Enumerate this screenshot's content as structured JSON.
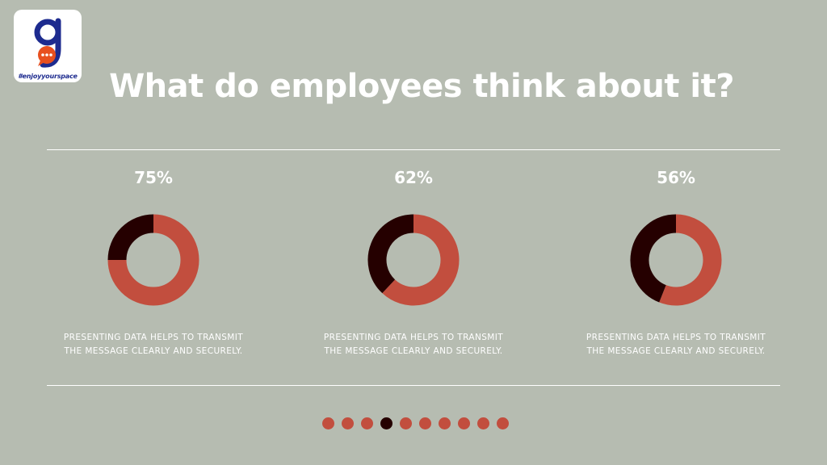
{
  "logo": {
    "tagline": "#enjoyyourspace",
    "colors": {
      "letter": "#1d2b8f",
      "bubble": "#e8501f"
    }
  },
  "title": "What do employees think about it?",
  "chart_data": [
    {
      "type": "pie",
      "donut": true,
      "title": "75%",
      "values": [
        75,
        25
      ],
      "colors": [
        "#c24e3e",
        "#250000"
      ],
      "caption": "PRESENTING DATA HELPS TO TRANSMIT THE MESSAGE CLEARLY AND SECURELY."
    },
    {
      "type": "pie",
      "donut": true,
      "title": "62%",
      "values": [
        62,
        38
      ],
      "colors": [
        "#c24e3e",
        "#250000"
      ],
      "caption": "PRESENTING DATA HELPS TO TRANSMIT THE MESSAGE CLEARLY AND SECURELY."
    },
    {
      "type": "pie",
      "donut": true,
      "title": "56%",
      "values": [
        56,
        44
      ],
      "colors": [
        "#c24e3e",
        "#250000"
      ],
      "caption": "PRESENTING DATA HELPS TO TRANSMIT THE MESSAGE CLEARLY AND SECURELY."
    }
  ],
  "pagination": {
    "count": 10,
    "active_index": 3,
    "colors": {
      "dot": "#c24e3e",
      "active": "#250000"
    }
  },
  "colors": {
    "background": "#b6bcb1",
    "text": "#ffffff"
  }
}
